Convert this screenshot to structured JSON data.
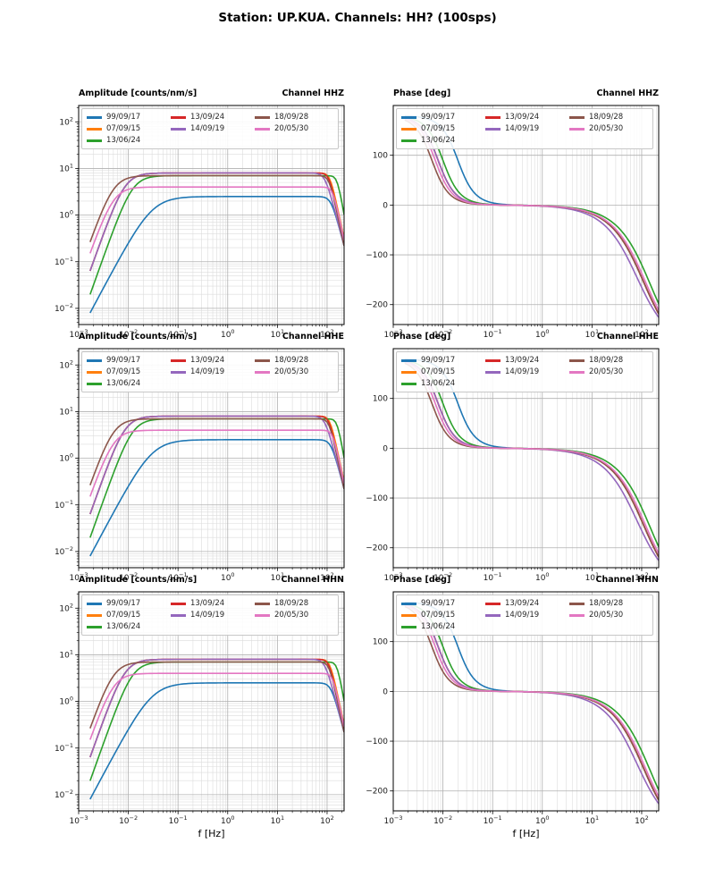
{
  "title": "Station: UP.KUA. Channels: HH? (100sps)",
  "xlabel": "f [Hz]",
  "chart_data": {
    "type": "line",
    "xscale": "log",
    "x_range_hz": [
      0.001,
      220
    ],
    "sampled_f_range_hz": [
      0.0017,
      220
    ],
    "x_tick_exponents": [
      -3,
      -2,
      -1,
      0,
      1,
      2
    ],
    "rows": [
      "HHZ",
      "HHE",
      "HHN"
    ],
    "amplitude_axis": {
      "title": "Amplitude [counts/nm/s]",
      "yscale": "log",
      "ylim": [
        0.0045,
        224
      ],
      "y_tick_exponents": [
        -2,
        -1,
        0,
        1,
        2
      ]
    },
    "phase_axis": {
      "title": "Phase [deg]",
      "yscale": "linear",
      "ylim": [
        -240,
        200
      ],
      "y_ticks": [
        100,
        0,
        -100,
        -200
      ]
    },
    "series": [
      {
        "label": "99/09/17",
        "color": "#1f77b4",
        "amplitude_model": {
          "plateau": 2.5,
          "f_low_hz": 0.03,
          "hp_order": 2,
          "f_high_hz": 120,
          "lp_order": 4
        },
        "phase_model": {
          "f_low_hz": 0.02,
          "f_high_hz": 110,
          "asymptote_deg": -310
        }
      },
      {
        "label": "07/09/15",
        "color": "#ff7f0e",
        "amplitude_model": {
          "plateau": 8,
          "f_low_hz": 0.0085,
          "hp_order": 3,
          "f_high_hz": 115,
          "lp_order": 5
        },
        "phase_model": {
          "f_low_hz": 0.008,
          "f_high_hz": 110,
          "asymptote_deg": -310
        }
      },
      {
        "label": "13/06/24",
        "color": "#2ca02c",
        "amplitude_model": {
          "plateau": 7,
          "f_low_hz": 0.012,
          "hp_order": 3,
          "f_high_hz": 160,
          "lp_order": 6
        },
        "phase_model": {
          "f_low_hz": 0.01,
          "f_high_hz": 150,
          "asymptote_deg": -320
        }
      },
      {
        "label": "13/09/24",
        "color": "#d62728",
        "amplitude_model": {
          "plateau": 8,
          "f_low_hz": 0.0085,
          "hp_order": 3,
          "f_high_hz": 110,
          "lp_order": 5
        },
        "phase_model": {
          "f_low_hz": 0.008,
          "f_high_hz": 110,
          "asymptote_deg": -310
        }
      },
      {
        "label": "14/09/19",
        "color": "#9467bd",
        "amplitude_model": {
          "plateau": 8,
          "f_low_hz": 0.0085,
          "hp_order": 3,
          "f_high_hz": 90,
          "lp_order": 4
        },
        "phase_model": {
          "f_low_hz": 0.008,
          "f_high_hz": 80,
          "asymptote_deg": -290
        }
      },
      {
        "label": "18/09/28",
        "color": "#8c564b",
        "amplitude_model": {
          "plateau": 7,
          "f_low_hz": 0.005,
          "hp_order": 3,
          "f_high_hz": 110,
          "lp_order": 5
        },
        "phase_model": {
          "f_low_hz": 0.006,
          "f_high_hz": 110,
          "asymptote_deg": -310
        }
      },
      {
        "label": "20/05/30",
        "color": "#e377c2",
        "amplitude_model": {
          "plateau": 4,
          "f_low_hz": 0.005,
          "hp_order": 3,
          "f_high_hz": 130,
          "lp_order": 5
        },
        "phase_model": {
          "f_low_hz": 0.007,
          "f_high_hz": 120,
          "asymptote_deg": -310
        }
      }
    ],
    "panels": [
      {
        "kind": "amplitude",
        "channel": "HHZ",
        "header_left": "Amplitude [counts/nm/s]",
        "header_right": "Channel HHZ"
      },
      {
        "kind": "phase",
        "channel": "HHZ",
        "header_left": "Phase [deg]",
        "header_right": "Channel HHZ"
      },
      {
        "kind": "amplitude",
        "channel": "HHE",
        "header_left": "Amplitude [counts/nm/s]",
        "header_right": "Channel HHE"
      },
      {
        "kind": "phase",
        "channel": "HHE",
        "header_left": "Phase [deg]",
        "header_right": "Channel HHE"
      },
      {
        "kind": "amplitude",
        "channel": "HHN",
        "header_left": "Amplitude [counts/nm/s]",
        "header_right": "Channel HHN"
      },
      {
        "kind": "phase",
        "channel": "HHN",
        "header_left": "Phase [deg]",
        "header_right": "Channel HHN"
      }
    ]
  }
}
